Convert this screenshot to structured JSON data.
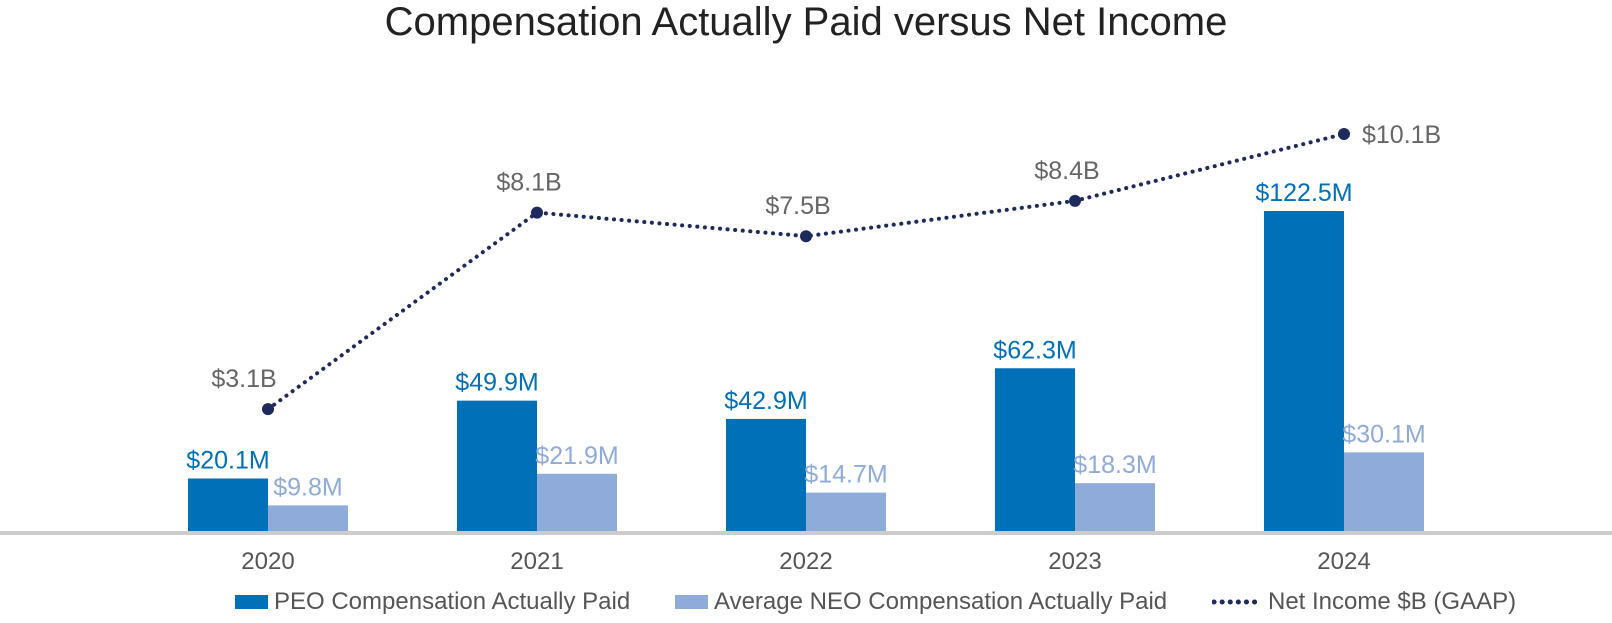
{
  "chart_data": {
    "type": "bar",
    "title": "Compensation Actually Paid versus Net Income",
    "categories": [
      "2020",
      "2021",
      "2022",
      "2023",
      "2024"
    ],
    "series": [
      {
        "name": "PEO Compensation Actually Paid",
        "kind": "bar",
        "unit": "$M",
        "values": [
          20.1,
          49.9,
          42.9,
          62.3,
          122.5
        ],
        "labels": [
          "$20.1M",
          "$49.9M",
          "$42.9M",
          "$62.3M",
          "$122.5M"
        ],
        "color": "#0070b8"
      },
      {
        "name": "Average NEO Compensation Actually Paid",
        "kind": "bar",
        "unit": "$M",
        "values": [
          9.8,
          21.9,
          14.7,
          18.3,
          30.1
        ],
        "labels": [
          "$9.8M",
          "$21.9M",
          "$14.7M",
          "$18.3M",
          "$30.1M"
        ],
        "color": "#8fabd9"
      },
      {
        "name": "Net Income $B (GAAP)",
        "kind": "line",
        "axis": "secondary",
        "unit": "$B",
        "values": [
          3.1,
          8.1,
          7.5,
          8.4,
          10.1
        ],
        "labels": [
          "$3.1B",
          "$8.1B",
          "$7.5B",
          "$8.4B",
          "$10.1B"
        ],
        "color": "#1f2a5c"
      }
    ],
    "ylim": [
      0,
      122.5
    ],
    "y2lim": [
      0,
      10.1
    ],
    "grid": false,
    "legend_position": "bottom",
    "xlabel": "",
    "ylabel": ""
  },
  "colors": {
    "title": "#222222",
    "category_label": "#555555",
    "line_label": "#666666",
    "baseline": "#cccccc"
  }
}
